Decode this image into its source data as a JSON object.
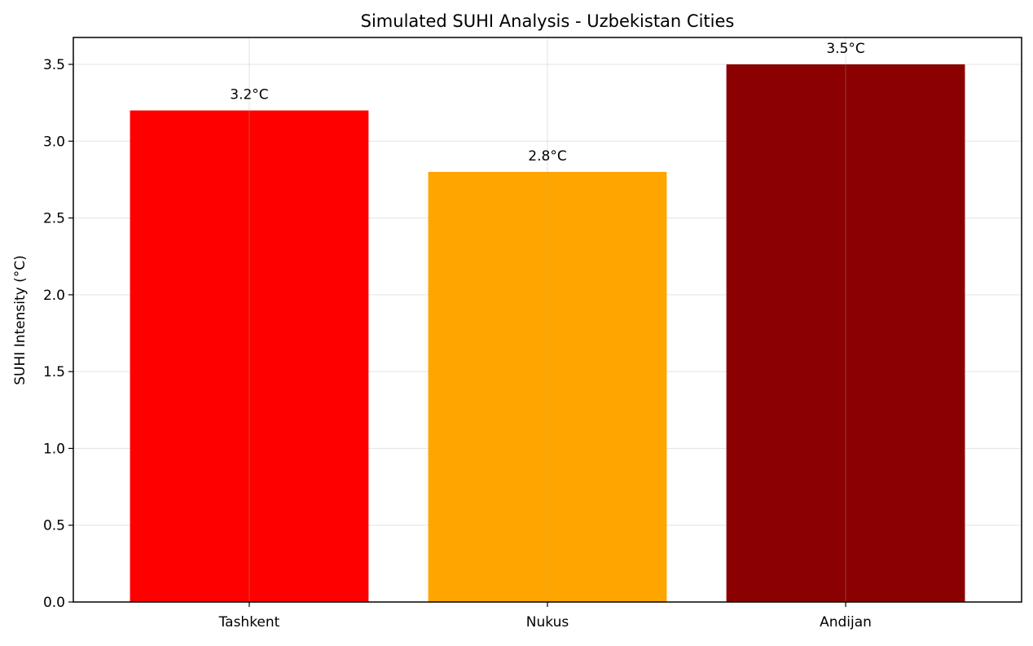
{
  "chart_data": {
    "type": "bar",
    "title": "Simulated SUHI Analysis - Uzbekistan Cities",
    "xlabel": "",
    "ylabel": "SUHI Intensity (°C)",
    "categories": [
      "Tashkent",
      "Nukus",
      "Andijan"
    ],
    "values": [
      3.2,
      2.8,
      3.5
    ],
    "data_labels": [
      "3.2°C",
      "2.8°C",
      "3.5°C"
    ],
    "colors": [
      "#ff0000",
      "#ffa500",
      "#8b0000"
    ],
    "ylim": [
      0,
      3.675
    ],
    "yticks": [
      0.0,
      0.5,
      1.0,
      1.5,
      2.0,
      2.5,
      3.0,
      3.5
    ],
    "ytick_labels": [
      "0.0",
      "0.5",
      "1.0",
      "1.5",
      "2.0",
      "2.5",
      "3.0",
      "3.5"
    ],
    "grid": true,
    "legend": "none"
  }
}
